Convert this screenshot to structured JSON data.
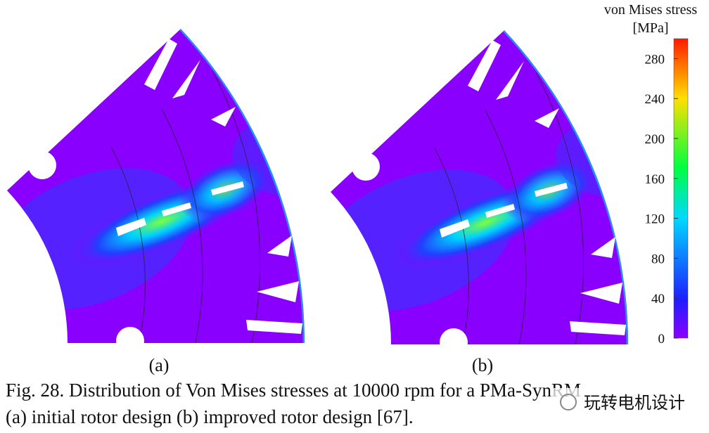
{
  "colorbar": {
    "title": [
      "von Mises stress",
      "[MPa]"
    ],
    "lim": [
      0,
      300
    ],
    "ticks": [
      0,
      40,
      80,
      120,
      160,
      200,
      240,
      280
    ]
  },
  "panels": [
    {
      "label": "(a)"
    },
    {
      "label": "(b)"
    }
  ],
  "caption": [
    "Fig. 28.  Distribution of Von Mises stresses at 10000 rpm for a PMa-SynRM",
    "(a) initial rotor design (b) improved rotor design [67]."
  ],
  "watermark": "玩转电机设计"
}
